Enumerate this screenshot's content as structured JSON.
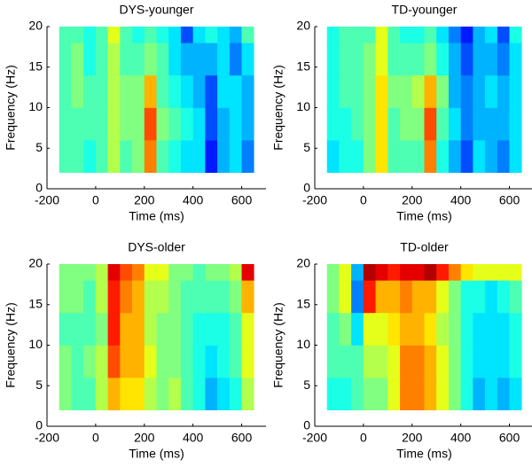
{
  "chart_data": [
    {
      "type": "heatmap",
      "title": "DYS-younger",
      "xlabel": "Time (ms)",
      "ylabel": "Frequency (Hz)",
      "xlim": [
        -200,
        700
      ],
      "ylim": [
        0,
        20
      ],
      "xticks": [
        -200,
        0,
        200,
        400,
        600
      ],
      "yticks": [
        0,
        5,
        10,
        15,
        20
      ],
      "colormap": "jet",
      "zlim": [
        0,
        1
      ],
      "xbins": [
        -150,
        -100,
        -50,
        0,
        50,
        100,
        150,
        200,
        250,
        300,
        350,
        400,
        450,
        500,
        550,
        600,
        650
      ],
      "ybins": [
        2,
        6,
        10,
        14,
        18,
        20
      ],
      "values": [
        [
          0.45,
          0.45,
          0.4,
          0.45,
          0.55,
          0.45,
          0.5,
          0.75,
          0.45,
          0.4,
          0.35,
          0.35,
          0.15,
          0.3,
          0.35,
          0.25
        ],
        [
          0.45,
          0.45,
          0.45,
          0.45,
          0.55,
          0.5,
          0.5,
          0.8,
          0.5,
          0.45,
          0.4,
          0.35,
          0.2,
          0.3,
          0.35,
          0.3
        ],
        [
          0.45,
          0.5,
          0.45,
          0.45,
          0.55,
          0.5,
          0.5,
          0.7,
          0.45,
          0.4,
          0.35,
          0.3,
          0.2,
          0.35,
          0.35,
          0.3
        ],
        [
          0.45,
          0.5,
          0.4,
          0.45,
          0.55,
          0.45,
          0.45,
          0.5,
          0.45,
          0.35,
          0.3,
          0.3,
          0.3,
          0.35,
          0.25,
          0.35
        ],
        [
          0.45,
          0.45,
          0.4,
          0.45,
          0.6,
          0.45,
          0.4,
          0.45,
          0.4,
          0.35,
          0.2,
          0.35,
          0.4,
          0.35,
          0.3,
          0.45
        ]
      ]
    },
    {
      "type": "heatmap",
      "title": "TD-younger",
      "xlabel": "Time (ms)",
      "ylabel": "Frequency (Hz)",
      "xlim": [
        -200,
        700
      ],
      "ylim": [
        0,
        20
      ],
      "xticks": [
        -200,
        0,
        200,
        400,
        600
      ],
      "yticks": [
        0,
        5,
        10,
        15,
        20
      ],
      "colormap": "jet",
      "zlim": [
        0,
        1
      ],
      "xbins": [
        -150,
        -100,
        -50,
        0,
        50,
        100,
        150,
        200,
        250,
        300,
        350,
        400,
        450,
        500,
        550,
        600,
        650
      ],
      "ybins": [
        2,
        6,
        10,
        14,
        18,
        20
      ],
      "values": [
        [
          0.35,
          0.4,
          0.4,
          0.5,
          0.65,
          0.45,
          0.45,
          0.45,
          0.75,
          0.4,
          0.3,
          0.2,
          0.35,
          0.3,
          0.25,
          0.35
        ],
        [
          0.4,
          0.4,
          0.45,
          0.5,
          0.65,
          0.45,
          0.5,
          0.5,
          0.8,
          0.45,
          0.35,
          0.25,
          0.3,
          0.3,
          0.3,
          0.35
        ],
        [
          0.4,
          0.45,
          0.45,
          0.5,
          0.65,
          0.5,
          0.5,
          0.55,
          0.7,
          0.5,
          0.3,
          0.25,
          0.3,
          0.35,
          0.3,
          0.35
        ],
        [
          0.4,
          0.45,
          0.45,
          0.5,
          0.6,
          0.45,
          0.45,
          0.45,
          0.5,
          0.4,
          0.3,
          0.2,
          0.3,
          0.3,
          0.25,
          0.35
        ],
        [
          0.4,
          0.45,
          0.45,
          0.45,
          0.6,
          0.45,
          0.4,
          0.4,
          0.45,
          0.35,
          0.25,
          0.15,
          0.3,
          0.35,
          0.2,
          0.4
        ]
      ]
    },
    {
      "type": "heatmap",
      "title": "DYS-older",
      "xlabel": "Time (ms)",
      "ylabel": "Frequency (Hz)",
      "xlim": [
        -200,
        700
      ],
      "ylim": [
        0,
        20
      ],
      "xticks": [
        -200,
        0,
        200,
        400,
        600
      ],
      "yticks": [
        0,
        5,
        10,
        15,
        20
      ],
      "colormap": "jet",
      "zlim": [
        0,
        1
      ],
      "xbins": [
        -150,
        -100,
        -50,
        0,
        50,
        100,
        150,
        200,
        250,
        300,
        350,
        400,
        450,
        500,
        550,
        600,
        650
      ],
      "ybins": [
        2,
        6,
        10,
        14,
        18,
        20
      ],
      "values": [
        [
          0.5,
          0.45,
          0.45,
          0.55,
          0.7,
          0.65,
          0.65,
          0.55,
          0.5,
          0.55,
          0.45,
          0.4,
          0.3,
          0.35,
          0.4,
          0.55
        ],
        [
          0.5,
          0.45,
          0.5,
          0.55,
          0.8,
          0.7,
          0.7,
          0.6,
          0.5,
          0.5,
          0.45,
          0.4,
          0.35,
          0.4,
          0.45,
          0.6
        ],
        [
          0.45,
          0.45,
          0.45,
          0.5,
          0.85,
          0.7,
          0.7,
          0.55,
          0.5,
          0.5,
          0.45,
          0.4,
          0.4,
          0.4,
          0.45,
          0.6
        ],
        [
          0.5,
          0.5,
          0.45,
          0.55,
          0.85,
          0.75,
          0.7,
          0.55,
          0.55,
          0.5,
          0.45,
          0.45,
          0.45,
          0.45,
          0.5,
          0.7
        ],
        [
          0.5,
          0.5,
          0.5,
          0.55,
          0.9,
          0.8,
          0.75,
          0.6,
          0.6,
          0.5,
          0.5,
          0.45,
          0.5,
          0.5,
          0.55,
          0.9
        ]
      ]
    },
    {
      "type": "heatmap",
      "title": "TD-older",
      "xlabel": "Time (ms)",
      "ylabel": "Frequency (Hz)",
      "xlim": [
        -200,
        700
      ],
      "ylim": [
        0,
        20
      ],
      "xticks": [
        -200,
        0,
        200,
        400,
        600
      ],
      "yticks": [
        0,
        5,
        10,
        15,
        20
      ],
      "colormap": "jet",
      "zlim": [
        0,
        1
      ],
      "xbins": [
        -150,
        -100,
        -50,
        0,
        50,
        100,
        150,
        200,
        250,
        300,
        350,
        400,
        450,
        500,
        550,
        600,
        650
      ],
      "ybins": [
        2,
        6,
        10,
        14,
        18,
        20
      ],
      "values": [
        [
          0.4,
          0.4,
          0.45,
          0.5,
          0.5,
          0.6,
          0.75,
          0.75,
          0.7,
          0.6,
          0.5,
          0.4,
          0.3,
          0.35,
          0.3,
          0.35
        ],
        [
          0.45,
          0.45,
          0.45,
          0.55,
          0.55,
          0.6,
          0.75,
          0.75,
          0.7,
          0.6,
          0.5,
          0.4,
          0.35,
          0.35,
          0.35,
          0.4
        ],
        [
          0.45,
          0.5,
          0.35,
          0.6,
          0.6,
          0.65,
          0.7,
          0.7,
          0.65,
          0.55,
          0.5,
          0.4,
          0.35,
          0.35,
          0.35,
          0.4
        ],
        [
          0.5,
          0.6,
          0.25,
          0.85,
          0.7,
          0.7,
          0.75,
          0.7,
          0.7,
          0.6,
          0.5,
          0.4,
          0.4,
          0.35,
          0.4,
          0.45
        ],
        [
          0.5,
          0.6,
          0.3,
          0.95,
          0.9,
          0.85,
          0.9,
          0.9,
          0.95,
          0.85,
          0.75,
          0.65,
          0.6,
          0.6,
          0.6,
          0.6
        ]
      ]
    }
  ]
}
